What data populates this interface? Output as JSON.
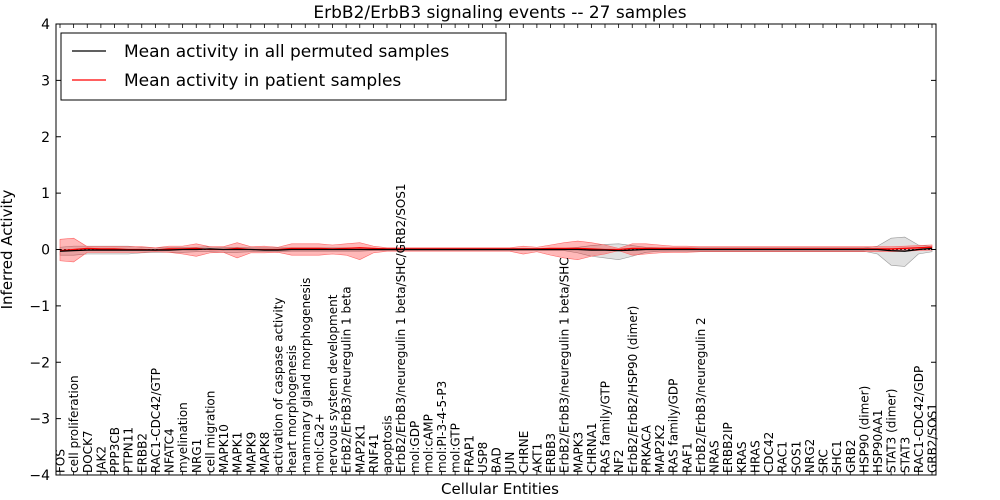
{
  "chart_data": {
    "type": "line",
    "title": "ErbB2/ErbB3 signaling events -- 27 samples",
    "xlabel": "Cellular Entities",
    "ylabel": "Inferred Activity",
    "ylim": [
      -4,
      4
    ],
    "yticks": [
      -4,
      -3,
      -2,
      -1,
      0,
      1,
      2,
      3,
      4
    ],
    "ytick_labels": [
      "−4",
      "−3",
      "−2",
      "−1",
      "0",
      "1",
      "2",
      "3",
      "4"
    ],
    "grid": false,
    "legend_position": "top-left",
    "categories": [
      "FOS",
      "cell proliferation",
      "DOCK7",
      "JAK2",
      "PPP3CB",
      "PTPN11",
      "ERBB2",
      "RAC1-CDC42/GTP",
      "NFATC4",
      "myelination",
      "NRG1",
      "cell migration",
      "MAPK10",
      "MAPK1",
      "MAPK9",
      "MAPK8",
      "activation of caspase activity",
      "heart morphogenesis",
      "mammary gland morphogenesis",
      "mol:Ca2+",
      "nervous system development",
      "ErbB2/ErbB3/neuregulin 1 beta",
      "MAP2K1",
      "RNF41",
      "apoptosis",
      "ErbB2/ErbB3/neuregulin 1 beta/SHC/GRB2/SOS1",
      "mol:GDP",
      "mol:cAMP",
      "mol:PI-3-4-5-P3",
      "mol:GTP",
      "FRAP1",
      "USP8",
      "BAD",
      "JUN",
      "CHRNE",
      "AKT1",
      "ERBB3",
      "ErbB2/ErbB3/neuregulin 1 beta/SHC",
      "MAPK3",
      "CHRNA1",
      "RAS family/GTP",
      "NF2",
      "ErbB2/ErbB2/HSP90 (dimer)",
      "PRKACA",
      "MAP2K2",
      "RAS family/GDP",
      "RAF1",
      "ErbB2/ErbB3/neuregulin 2",
      "NRAS",
      "ERBB2IP",
      "KRAS",
      "HRAS",
      "CDC42",
      "RAC1",
      "SOS1",
      "NRG2",
      "SRC",
      "SHC1",
      "GRB2",
      "HSP90 (dimer)",
      "HSP90AA1",
      "STAT3 (dimer)",
      "STAT3",
      "RAC1-CDC42/GDP",
      "GRB2/SOS1"
    ],
    "series": [
      {
        "name": "Mean activity in all permuted samples",
        "color": "#000000",
        "values": [
          -0.03,
          -0.02,
          -0.01,
          -0.01,
          -0.01,
          -0.01,
          -0.01,
          -0.01,
          -0.01,
          0.0,
          0.0,
          0.01,
          0.0,
          0.0,
          0.0,
          -0.01,
          -0.01,
          0.0,
          0.0,
          0.0,
          0.0,
          0.0,
          0.0,
          0.0,
          0.0,
          0.0,
          0.0,
          0.0,
          0.0,
          0.0,
          0.0,
          0.0,
          0.0,
          0.0,
          0.0,
          0.0,
          0.0,
          0.0,
          0.0,
          -0.01,
          -0.01,
          -0.02,
          -0.01,
          0.0,
          0.0,
          0.0,
          0.0,
          0.0,
          0.0,
          0.0,
          0.0,
          0.0,
          0.0,
          0.0,
          0.0,
          0.0,
          0.0,
          0.0,
          0.0,
          0.0,
          0.0,
          -0.02,
          -0.03,
          0.0,
          0.02
        ],
        "band_upper": [
          0.04,
          0.06,
          0.06,
          0.06,
          0.06,
          0.06,
          0.04,
          0.03,
          0.03,
          0.04,
          0.04,
          0.05,
          0.04,
          0.04,
          0.03,
          0.03,
          0.03,
          0.03,
          0.03,
          0.03,
          0.03,
          0.03,
          0.03,
          0.02,
          0.02,
          0.02,
          0.02,
          0.02,
          0.02,
          0.02,
          0.02,
          0.02,
          0.02,
          0.02,
          0.02,
          0.02,
          0.02,
          0.02,
          0.04,
          0.07,
          0.09,
          0.1,
          0.07,
          0.04,
          0.03,
          0.03,
          0.03,
          0.03,
          0.03,
          0.03,
          0.03,
          0.03,
          0.03,
          0.03,
          0.03,
          0.03,
          0.03,
          0.03,
          0.03,
          0.03,
          0.06,
          0.2,
          0.22,
          0.08,
          0.05
        ],
        "band_lower": [
          -0.1,
          -0.1,
          -0.08,
          -0.08,
          -0.08,
          -0.08,
          -0.06,
          -0.05,
          -0.05,
          -0.05,
          -0.04,
          -0.04,
          -0.05,
          -0.05,
          -0.04,
          -0.04,
          -0.04,
          -0.03,
          -0.03,
          -0.03,
          -0.03,
          -0.03,
          -0.03,
          -0.02,
          -0.02,
          -0.02,
          -0.02,
          -0.02,
          -0.02,
          -0.02,
          -0.02,
          -0.02,
          -0.02,
          -0.02,
          -0.02,
          -0.02,
          -0.02,
          -0.02,
          -0.06,
          -0.12,
          -0.15,
          -0.18,
          -0.12,
          -0.05,
          -0.03,
          -0.03,
          -0.03,
          -0.03,
          -0.03,
          -0.03,
          -0.03,
          -0.03,
          -0.03,
          -0.03,
          -0.03,
          -0.03,
          -0.03,
          -0.03,
          -0.03,
          -0.03,
          -0.08,
          -0.28,
          -0.3,
          -0.08,
          -0.04
        ]
      },
      {
        "name": "Mean activity in patient samples",
        "color": "#ff0000",
        "values": [
          -0.02,
          0.0,
          0.02,
          0.01,
          0.01,
          0.0,
          0.0,
          -0.01,
          0.01,
          0.01,
          0.02,
          0.0,
          0.0,
          0.02,
          0.0,
          0.0,
          0.0,
          0.02,
          0.02,
          0.02,
          0.01,
          0.02,
          0.03,
          0.02,
          0.01,
          0.01,
          0.01,
          0.01,
          0.01,
          0.01,
          0.01,
          0.01,
          0.01,
          0.01,
          0.01,
          0.01,
          0.02,
          0.02,
          0.02,
          0.01,
          0.0,
          0.0,
          0.02,
          0.02,
          0.02,
          0.02,
          0.02,
          0.01,
          0.01,
          0.01,
          0.01,
          0.01,
          0.01,
          0.01,
          0.01,
          0.01,
          0.01,
          0.01,
          0.01,
          0.01,
          0.01,
          0.01,
          0.02,
          0.03,
          0.04
        ],
        "band_upper": [
          0.18,
          0.2,
          0.05,
          0.05,
          0.05,
          0.05,
          0.05,
          0.03,
          0.06,
          0.06,
          0.1,
          0.05,
          0.05,
          0.12,
          0.05,
          0.06,
          0.04,
          0.1,
          0.1,
          0.1,
          0.08,
          0.1,
          0.12,
          0.06,
          0.03,
          0.03,
          0.03,
          0.03,
          0.03,
          0.03,
          0.03,
          0.03,
          0.03,
          0.03,
          0.06,
          0.04,
          0.08,
          0.12,
          0.15,
          0.12,
          0.08,
          0.02,
          0.1,
          0.1,
          0.08,
          0.06,
          0.06,
          0.05,
          0.05,
          0.05,
          0.05,
          0.05,
          0.05,
          0.05,
          0.05,
          0.05,
          0.05,
          0.05,
          0.05,
          0.05,
          0.05,
          0.05,
          0.06,
          0.07,
          0.08
        ],
        "band_lower": [
          -0.2,
          -0.22,
          -0.05,
          -0.05,
          -0.05,
          -0.05,
          -0.05,
          -0.04,
          -0.05,
          -0.08,
          -0.12,
          -0.06,
          -0.05,
          -0.15,
          -0.06,
          -0.06,
          -0.05,
          -0.1,
          -0.1,
          -0.1,
          -0.08,
          -0.1,
          -0.18,
          -0.06,
          -0.03,
          -0.03,
          -0.03,
          -0.03,
          -0.03,
          -0.03,
          -0.03,
          -0.03,
          -0.03,
          -0.03,
          -0.08,
          -0.04,
          -0.1,
          -0.15,
          -0.18,
          -0.12,
          -0.08,
          -0.02,
          -0.1,
          -0.08,
          -0.06,
          -0.05,
          -0.05,
          -0.04,
          -0.04,
          -0.04,
          -0.04,
          -0.04,
          -0.04,
          -0.04,
          -0.04,
          -0.04,
          -0.04,
          -0.04,
          -0.04,
          -0.04,
          -0.04,
          -0.04,
          -0.03,
          -0.02,
          -0.01
        ]
      }
    ]
  }
}
